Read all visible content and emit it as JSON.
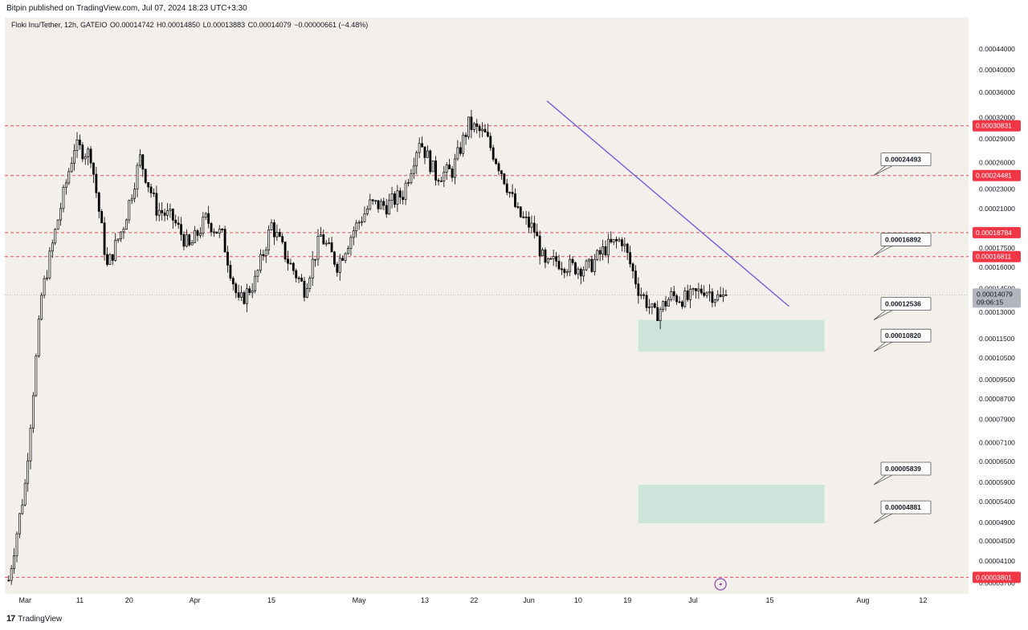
{
  "header": {
    "published": "Bitpin published on TradingView.com, Jul 07, 2024 18:23 UTC+3:30"
  },
  "legend": {
    "symbol": "Floki Inu/Tether, 12h, GATEIO",
    "open": "O0.00014742",
    "high": "H0.00014850",
    "low": "L0.00013883",
    "close": "C0.00014079",
    "change": "−0.00000661 (−4.48%)"
  },
  "price_axis": {
    "unit": "USDT",
    "current_price": "0.00014079",
    "countdown": "09:06:15"
  },
  "footer": {
    "brand": "TradingView",
    "logo_text": "17"
  },
  "colors": {
    "background": "#f3efeb",
    "candle_up": "#ffffff",
    "candle_down": "#000000",
    "level_line": "#e0505a",
    "level_tag": "#f23645",
    "trendline": "#6c55d8",
    "zone": "#cde4db",
    "current_tag": "#b2b5be"
  },
  "chart_data": {
    "type": "candlestick",
    "title": "Floki Inu/Tether, 12h, GATEIO",
    "xlabel": "",
    "ylabel": "",
    "x_ticks": [
      "Mar",
      "11",
      "20",
      "Apr",
      "15",
      "May",
      "13",
      "22",
      "Jun",
      "10",
      "19",
      "Jul",
      "15",
      "Aug",
      "12"
    ],
    "y_scale": "log",
    "y_ticks": [
      "0.00044000",
      "0.00040000",
      "0.00036000",
      "0.00032000",
      "0.00029000",
      "0.00026000",
      "0.00023000",
      "0.00021000",
      "0.00019000",
      "0.00017500",
      "0.00016000",
      "0.00014500",
      "0.00013000",
      "0.00011500",
      "0.00010500",
      "0.00009500",
      "0.00008700",
      "0.00007900",
      "0.00007100",
      "0.00006500",
      "0.00005900",
      "0.00005400",
      "0.00004900",
      "0.00004500",
      "0.00004100",
      "0.00003700"
    ],
    "ylim": [
      3.52e-05,
      0.000476
    ],
    "xlim_days": [
      -3.7,
      172.3
    ],
    "x_axis_origin": "2024-03-01",
    "horizontal_levels": [
      "0.00030831",
      "0.00024481",
      "0.00018784",
      "0.00016811",
      "0.00003801"
    ],
    "callout_labels": [
      "0.00024493",
      "0.00016892",
      "0.00012536",
      "0.00010820",
      "0.00005839",
      "0.00004881"
    ],
    "zones": [
      {
        "from_day": 112,
        "to_day": 146,
        "low": 0.0001082,
        "high": 0.00012536
      },
      {
        "from_day": 112,
        "to_day": 146,
        "low": 4.881e-05,
        "high": 5.839e-05
      }
    ],
    "trendline": [
      {
        "day": 95.3,
        "price": 0.000346
      },
      {
        "day": 139.5,
        "price": 0.0001335
      }
    ],
    "candles_anchor_days": [
      -3,
      0,
      3,
      6,
      9,
      12,
      15,
      18,
      21,
      24,
      27,
      30,
      33,
      36,
      39,
      42,
      45,
      48,
      51,
      54,
      57,
      60,
      63,
      66,
      69,
      72,
      75,
      78,
      81,
      84,
      87,
      90,
      93,
      95,
      97,
      100,
      103,
      106,
      109,
      112,
      115,
      118,
      121,
      124,
      127,
      128
    ],
    "candles_anchor_close": [
      3.75e-05,
      5.85e-05,
      0.00014,
      0.0002,
      0.00028,
      0.00027,
      0.00016,
      0.000195,
      0.000265,
      0.00021,
      0.0002,
      0.000175,
      0.0002,
      0.000185,
      0.000135,
      0.00015,
      0.000195,
      0.000165,
      0.000145,
      0.000185,
      0.000162,
      0.00019,
      0.000214,
      0.000213,
      0.000225,
      0.00029,
      0.000245,
      0.00025,
      0.00031,
      0.000295,
      0.00025,
      0.000205,
      0.00019,
      0.00016,
      0.000165,
      0.00016,
      0.00016,
      0.000175,
      0.000182,
      0.000145,
      0.000128,
      0.00014,
      0.000138,
      0.000145,
      0.000138,
      0.00014079
    ]
  }
}
